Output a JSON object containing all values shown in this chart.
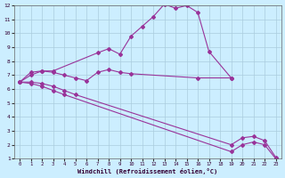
{
  "background_color": "#cceeff",
  "line_color": "#993399",
  "grid_color": "#aaccdd",
  "xlabel": "Windchill (Refroidissement éolien,°C)",
  "xlim": [
    -0.5,
    23.5
  ],
  "ylim": [
    1,
    12
  ],
  "xticks": [
    0,
    1,
    2,
    3,
    4,
    5,
    6,
    7,
    8,
    9,
    10,
    11,
    12,
    13,
    14,
    15,
    16,
    17,
    18,
    19,
    20,
    21,
    22,
    23
  ],
  "yticks": [
    1,
    2,
    3,
    4,
    5,
    6,
    7,
    8,
    9,
    10,
    11,
    12
  ],
  "series": [
    {
      "x": [
        0,
        1,
        2,
        3,
        7,
        8,
        9,
        10,
        11,
        12,
        13,
        14,
        15,
        16,
        17,
        19
      ],
      "y": [
        6.5,
        7.2,
        7.3,
        7.3,
        8.6,
        8.9,
        8.5,
        9.8,
        10.5,
        11.2,
        12.1,
        11.8,
        12.0,
        11.5,
        8.7,
        6.8
      ]
    },
    {
      "x": [
        0,
        1,
        2,
        3,
        4,
        5,
        6,
        7,
        8,
        9,
        10,
        16,
        19
      ],
      "y": [
        6.5,
        7.0,
        7.3,
        7.2,
        7.0,
        6.8,
        6.6,
        7.2,
        7.4,
        7.2,
        7.1,
        6.8,
        6.8
      ]
    },
    {
      "x": [
        0,
        1,
        2,
        3,
        4,
        5,
        19,
        20,
        21,
        22,
        23
      ],
      "y": [
        6.5,
        6.5,
        6.4,
        6.2,
        5.9,
        5.6,
        2.0,
        2.5,
        2.6,
        2.3,
        1.1
      ]
    },
    {
      "x": [
        0,
        1,
        2,
        3,
        4,
        19,
        20,
        21,
        22,
        23
      ],
      "y": [
        6.5,
        6.4,
        6.2,
        5.9,
        5.6,
        1.5,
        2.0,
        2.2,
        2.0,
        1.0
      ]
    }
  ]
}
